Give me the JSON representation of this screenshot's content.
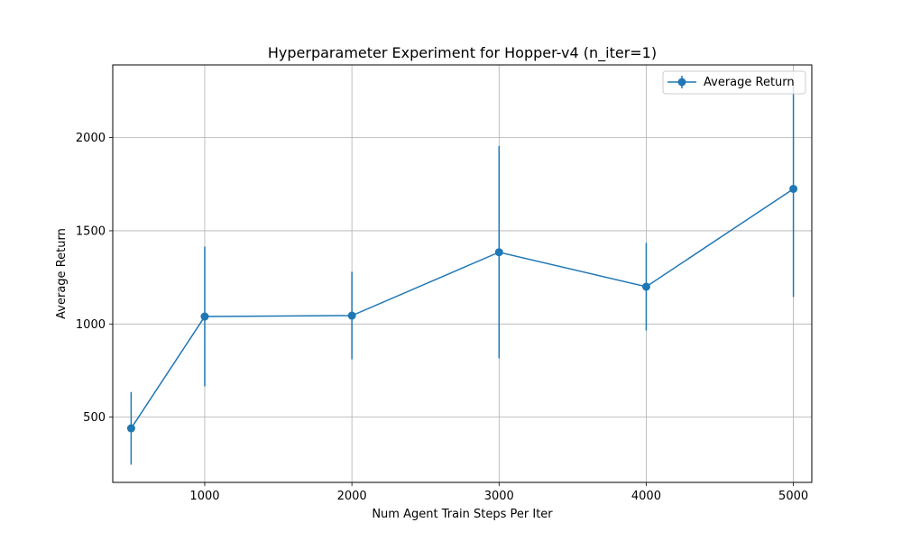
{
  "chart_data": {
    "type": "line",
    "title": "Hyperparameter Experiment for Hopper-v4 (n_iter=1)",
    "xlabel": "Num Agent Train Steps Per Iter",
    "ylabel": "Average Return",
    "x": [
      500,
      1000,
      2000,
      3000,
      4000,
      5000
    ],
    "xlim": [
      375,
      5125
    ],
    "ylim": [
      150,
      2390
    ],
    "xticks": [
      1000,
      2000,
      3000,
      4000,
      5000
    ],
    "yticks": [
      500,
      1000,
      1500,
      2000
    ],
    "grid": true,
    "legend_position": "top-right",
    "series": [
      {
        "name": "Average Return",
        "color": "#1f77b4",
        "marker": "circle",
        "values": [
          440,
          1040,
          1045,
          1385,
          1200,
          1725
        ],
        "error": [
          195,
          375,
          235,
          570,
          235,
          580
        ]
      }
    ]
  }
}
